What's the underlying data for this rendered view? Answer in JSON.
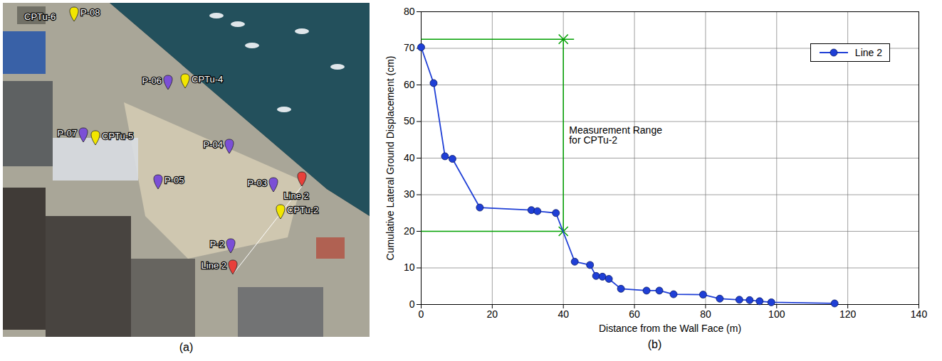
{
  "panel_a": {
    "caption": "(a)",
    "markers": [
      {
        "label": "CPTu-6"
      },
      {
        "label": "P-08",
        "color": "#f2e600"
      },
      {
        "label": "P-06",
        "color": "#7b4fd6"
      },
      {
        "label": "CPTu-4",
        "color": "#f2e600"
      },
      {
        "label": "P-07",
        "color": "#7b4fd6"
      },
      {
        "label": "CPTu-5",
        "color": "#f2e600"
      },
      {
        "label": "P-04",
        "color": "#7b4fd6"
      },
      {
        "label": "P-05",
        "color": "#7b4fd6"
      },
      {
        "label": "P-03",
        "color": "#7b4fd6"
      },
      {
        "label": "Line 2",
        "color": "#e8403a"
      },
      {
        "label": "CPTu-2",
        "color": "#f2e600"
      },
      {
        "label": "P-2",
        "color": "#7b4fd6"
      },
      {
        "label": "Line 2",
        "color": "#e8403a"
      }
    ]
  },
  "chart_data": {
    "type": "line",
    "caption": "(b)",
    "x_label": "Distance from the Wall Face (m)",
    "y_label": "Cumulative Lateral Ground Displacement (cm)",
    "x": [
      0,
      3.5,
      6.7,
      8.8,
      16.5,
      31,
      32.7,
      37.9,
      43.2,
      47.5,
      49.2,
      51,
      52.8,
      56.2,
      63.4,
      67,
      71,
      79.3,
      84,
      89.5,
      92.4,
      95.2,
      98.5,
      116.3
    ],
    "series": [
      {
        "name": "Line 2",
        "color": "#1f3fd6",
        "marker": "circle",
        "line_style": "solid",
        "values": [
          70.3,
          60.5,
          40.5,
          39.8,
          26.5,
          25.8,
          25.5,
          25,
          11.7,
          10.8,
          7.8,
          7.6,
          7,
          4.3,
          3.8,
          3.8,
          2.8,
          2.7,
          1.6,
          1.3,
          1.2,
          0.9,
          0.6,
          0.3
        ]
      }
    ],
    "xlim": [
      0,
      140
    ],
    "xticks": [
      0,
      20,
      40,
      60,
      80,
      100,
      120,
      140
    ],
    "ylim": [
      0,
      80
    ],
    "yticks": [
      0,
      10,
      20,
      30,
      40,
      50,
      60,
      70,
      80
    ],
    "grid": true,
    "legend": "upper right",
    "annotation": {
      "text": "Measurement Range\nfor CPTu-2",
      "color": "#00a000",
      "guides": [
        {
          "x1": 0,
          "y1": 72.5,
          "x2": 43,
          "y2": 72.5
        },
        {
          "x1": 40,
          "y1": 72.5,
          "x2": 40,
          "y2": 20
        },
        {
          "x1": 0,
          "y1": 20,
          "x2": 40,
          "y2": 20
        }
      ],
      "points": [
        {
          "x": 40,
          "y": 72.5
        },
        {
          "x": 40,
          "y": 20
        }
      ]
    }
  }
}
